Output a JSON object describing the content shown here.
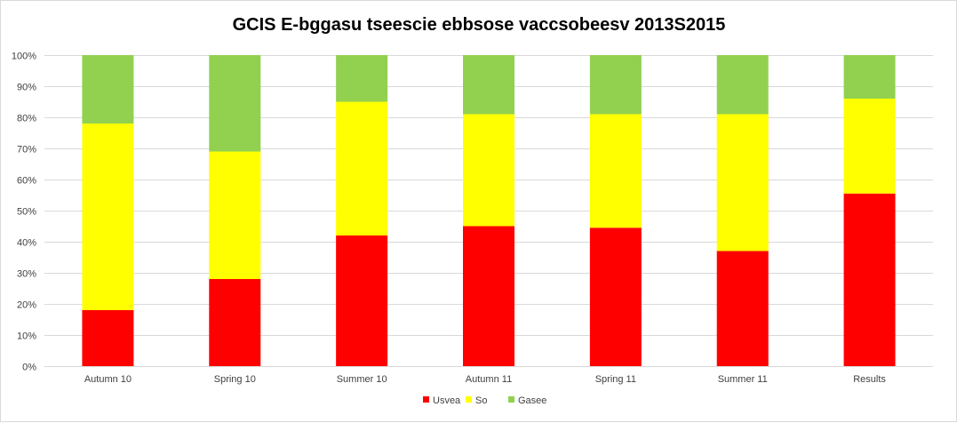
{
  "chart_data": {
    "type": "bar",
    "stacked": true,
    "title": "GCIS E-bggasu tseescie ebbsose vaccsobeesv 2013S2015",
    "xlabel": "",
    "ylabel": "",
    "ylim": [
      0,
      100
    ],
    "yticks": [
      "0%",
      "10%",
      "20%",
      "30%",
      "40%",
      "50%",
      "60%",
      "70%",
      "80%",
      "90%",
      "100%"
    ],
    "categories": [
      "Autumn 10",
      "Spring 10",
      "Summer 10",
      "Autumn 11",
      "Spring 11",
      "Summer 11",
      "Results"
    ],
    "series": [
      {
        "name": "Usvea",
        "color": "#ff0000",
        "values": [
          18,
          28,
          42,
          45,
          44.5,
          37,
          55.5
        ]
      },
      {
        "name": "So",
        "color": "#ffff00",
        "values": [
          60,
          41,
          43,
          36,
          36.5,
          44,
          30.5
        ]
      },
      {
        "name": "Gasee",
        "color": "#92d050",
        "values": [
          22,
          31,
          15,
          19,
          19,
          19,
          14
        ]
      }
    ],
    "grid": true,
    "legend_position": "bottom"
  }
}
